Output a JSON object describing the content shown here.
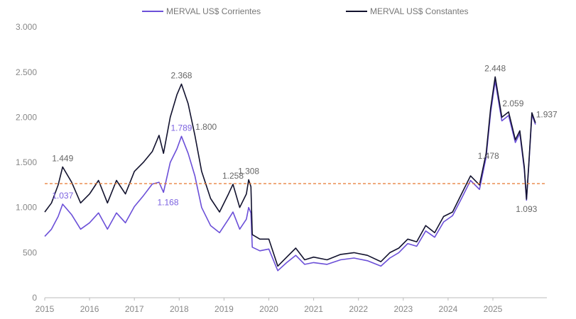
{
  "chart_data": {
    "type": "line",
    "title": "",
    "xlabel": "",
    "ylabel": "",
    "xlim": [
      2015,
      2026
    ],
    "ylim": [
      0,
      3000
    ],
    "yticks": [
      0,
      500,
      1000,
      1500,
      2000,
      2500,
      3000
    ],
    "ytick_labels": [
      "0",
      "500",
      "1.000",
      "1.500",
      "2.000",
      "2.500",
      "3.000"
    ],
    "xticks": [
      2015,
      2016,
      2017,
      2018,
      2019,
      2020,
      2021,
      2022,
      2023,
      2024,
      2025
    ],
    "xtick_labels": [
      "2015",
      "2016",
      "2017",
      "2018",
      "2019",
      "2020",
      "2021",
      "2022",
      "2023",
      "2024",
      "2025"
    ],
    "grid": false,
    "legend_position": "top",
    "x": [
      2015.0,
      2015.15,
      2015.3,
      2015.4,
      2015.6,
      2015.8,
      2016.0,
      2016.2,
      2016.4,
      2016.6,
      2016.8,
      2017.0,
      2017.2,
      2017.4,
      2017.55,
      2017.65,
      2017.8,
      2017.95,
      2018.05,
      2018.2,
      2018.35,
      2018.5,
      2018.7,
      2018.9,
      2019.1,
      2019.2,
      2019.35,
      2019.5,
      2019.55,
      2019.6,
      2019.63,
      2019.8,
      2020.0,
      2020.2,
      2020.4,
      2020.6,
      2020.8,
      2021.0,
      2021.3,
      2021.6,
      2021.9,
      2022.2,
      2022.5,
      2022.7,
      2022.9,
      2023.1,
      2023.3,
      2023.5,
      2023.7,
      2023.9,
      2024.1,
      2024.3,
      2024.5,
      2024.7,
      2024.85,
      2024.95,
      2025.05,
      2025.2,
      2025.35,
      2025.5,
      2025.6,
      2025.7,
      2025.75,
      2025.8,
      2025.87,
      2025.95
    ],
    "series": [
      {
        "name": "MERVAL US$ Corrientes",
        "color": "#6b4fd8",
        "values": [
          680,
          760,
          900,
          1037,
          920,
          760,
          830,
          940,
          760,
          940,
          830,
          1010,
          1130,
          1260,
          1280,
          1168,
          1500,
          1650,
          1789,
          1600,
          1350,
          1000,
          800,
          720,
          870,
          950,
          760,
          870,
          1000,
          940,
          560,
          520,
          540,
          300,
          390,
          470,
          370,
          390,
          370,
          420,
          440,
          410,
          350,
          440,
          500,
          600,
          570,
          740,
          670,
          840,
          910,
          1100,
          1300,
          1200,
          1560,
          2050,
          2400,
          1960,
          2020,
          1720,
          1820,
          1420,
          1080,
          1460,
          2030,
          1920
        ]
      },
      {
        "name": "MERVAL US$ Constantes",
        "color": "#12122e",
        "values": [
          950,
          1050,
          1250,
          1449,
          1280,
          1050,
          1150,
          1300,
          1050,
          1300,
          1150,
          1400,
          1500,
          1620,
          1800,
          1600,
          2000,
          2250,
          2368,
          2150,
          1800,
          1400,
          1100,
          950,
          1150,
          1258,
          1000,
          1150,
          1308,
          1230,
          700,
          650,
          650,
          350,
          450,
          550,
          420,
          450,
          420,
          480,
          500,
          470,
          400,
          500,
          550,
          650,
          620,
          800,
          720,
          900,
          950,
          1150,
          1350,
          1250,
          1600,
          2100,
          2448,
          2000,
          2059,
          1750,
          1850,
          1450,
          1093,
          1478,
          2050,
          1937
        ]
      }
    ],
    "reference_line": {
      "value": 1265,
      "color": "#e8772e",
      "style": "dashed"
    },
    "annotations": [
      {
        "text": "1.449",
        "x": 2015.4,
        "y": 1449,
        "series": 1
      },
      {
        "text": "1.037",
        "x": 2015.4,
        "y": 1037,
        "series": 0
      },
      {
        "text": "1.168",
        "x": 2017.75,
        "y": 1168,
        "series": 0
      },
      {
        "text": "1.789",
        "x": 2018.05,
        "y": 1789,
        "series": 0
      },
      {
        "text": "2.368",
        "x": 2018.05,
        "y": 2368,
        "series": 1
      },
      {
        "text": "1.800",
        "x": 2018.6,
        "y": 1800,
        "series": 1
      },
      {
        "text": "1.258",
        "x": 2019.2,
        "y": 1258,
        "series": 1
      },
      {
        "text": "1.308",
        "x": 2019.55,
        "y": 1308,
        "series": 1
      },
      {
        "text": "2.448",
        "x": 2025.05,
        "y": 2448,
        "series": 1
      },
      {
        "text": "2.059",
        "x": 2025.45,
        "y": 2059,
        "series": 1
      },
      {
        "text": "1.478",
        "x": 2024.9,
        "y": 1478,
        "series": 1
      },
      {
        "text": "1.093",
        "x": 2025.75,
        "y": 1093,
        "series": 1
      },
      {
        "text": "1.937",
        "x": 2026.2,
        "y": 1937,
        "series": 1
      }
    ]
  }
}
